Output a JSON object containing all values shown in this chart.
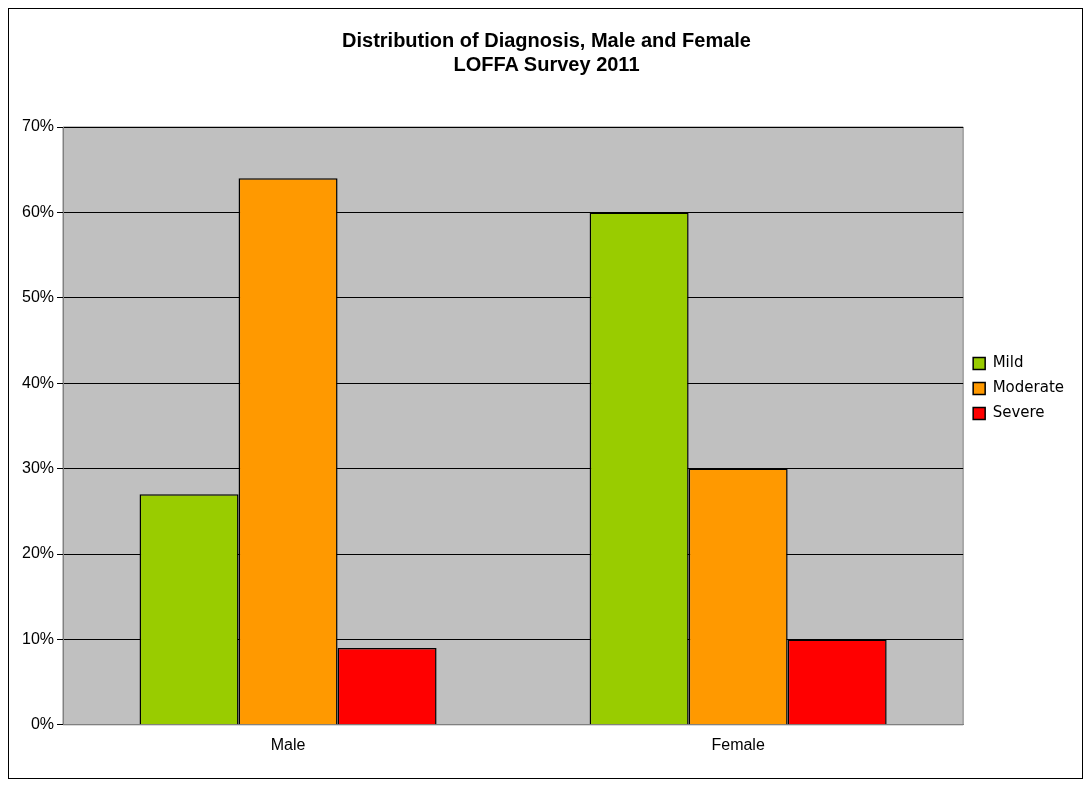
{
  "chart_data": {
    "type": "bar",
    "title": [
      "Distribution of Diagnosis, Male and Female",
      "LOFFA Survey 2011"
    ],
    "categories": [
      "Male",
      "Female"
    ],
    "series": [
      {
        "name": "Mild",
        "color": "#99cc00",
        "values": [
          27,
          60
        ]
      },
      {
        "name": "Moderate",
        "color": "#ff9900",
        "values": [
          64,
          30
        ]
      },
      {
        "name": "Severe",
        "color": "#ff0000",
        "values": [
          9,
          10
        ]
      }
    ],
    "ylim": [
      0,
      70
    ],
    "yticks": [
      {
        "value": 0,
        "label": "0%"
      },
      {
        "value": 10,
        "label": "10%"
      },
      {
        "value": 20,
        "label": "20%"
      },
      {
        "value": 30,
        "label": "30%"
      },
      {
        "value": 40,
        "label": "40%"
      },
      {
        "value": 50,
        "label": "50%"
      },
      {
        "value": 60,
        "label": "60%"
      },
      {
        "value": 70,
        "label": "70%"
      }
    ],
    "grid": "y",
    "legend": "right"
  }
}
